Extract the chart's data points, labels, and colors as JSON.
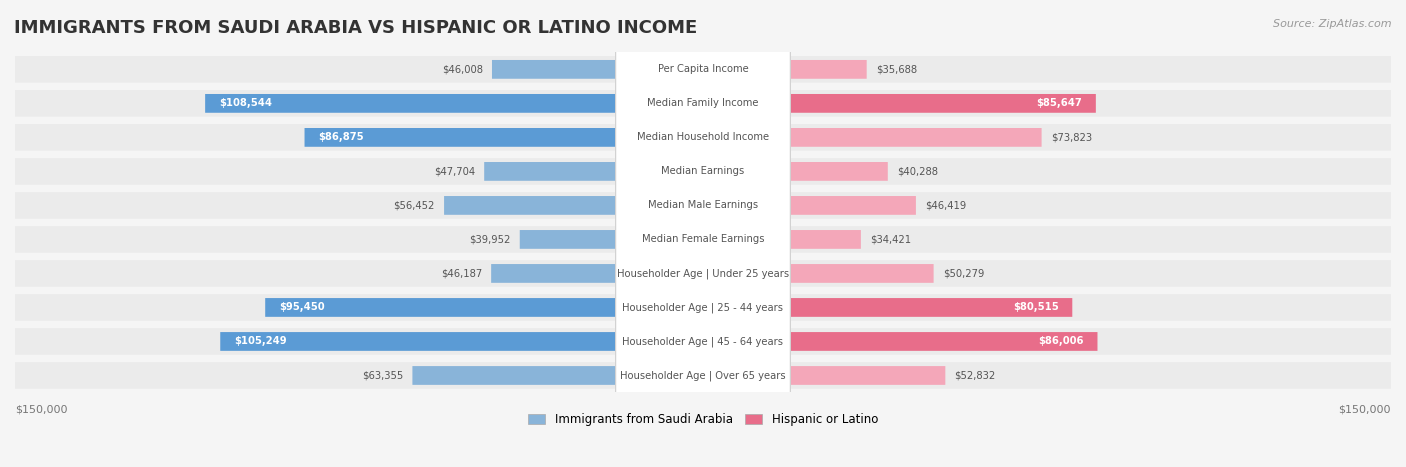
{
  "title": "IMMIGRANTS FROM SAUDI ARABIA VS HISPANIC OR LATINO INCOME",
  "source": "Source: ZipAtlas.com",
  "categories": [
    "Per Capita Income",
    "Median Family Income",
    "Median Household Income",
    "Median Earnings",
    "Median Male Earnings",
    "Median Female Earnings",
    "Householder Age | Under 25 years",
    "Householder Age | 25 - 44 years",
    "Householder Age | 45 - 64 years",
    "Householder Age | Over 65 years"
  ],
  "saudi_values": [
    46008,
    108544,
    86875,
    47704,
    56452,
    39952,
    46187,
    95450,
    105249,
    63355
  ],
  "latino_values": [
    35688,
    85647,
    73823,
    40288,
    46419,
    34421,
    50279,
    80515,
    86006,
    52832
  ],
  "saudi_color": "#89b4d9",
  "saudi_color_dark": "#5b9bd5",
  "latino_color": "#f4a7b9",
  "latino_color_dark": "#e86d8a",
  "max_val": 150000,
  "background_color": "#f5f5f5",
  "row_bg": "#efefef",
  "label_bg": "#ffffff",
  "saudi_label": "Immigrants from Saudi Arabia",
  "latino_label": "Hispanic or Latino",
  "saudi_threshold": 80000,
  "latino_threshold": 80000
}
